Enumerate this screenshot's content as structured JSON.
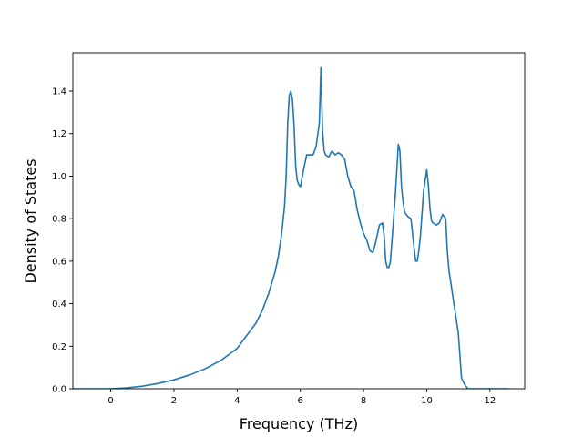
{
  "chart_data": {
    "type": "line",
    "title": "",
    "xlabel": "Frequency (THz)",
    "ylabel": "Density of States",
    "xlim": [
      -1.2,
      13.1
    ],
    "ylim": [
      0,
      1.58
    ],
    "xticks": [
      0,
      2,
      4,
      6,
      8,
      10,
      12
    ],
    "yticks": [
      0.0,
      0.2,
      0.4,
      0.6,
      0.8,
      1.0,
      1.2,
      1.4
    ],
    "xtick_labels": [
      "0",
      "2",
      "4",
      "6",
      "8",
      "10",
      "12"
    ],
    "ytick_labels": [
      "0.0",
      "0.2",
      "0.4",
      "0.6",
      "0.8",
      "1.0",
      "1.2",
      "1.4"
    ],
    "grid": false,
    "legend": "none",
    "line_color": "#1f77b4",
    "series": [
      {
        "x": [
          -1.2,
          -0.5,
          0.0,
          0.5,
          1.0,
          1.5,
          2.0,
          2.5,
          3.0,
          3.5,
          4.0,
          4.1,
          4.2,
          4.4,
          4.6,
          4.8,
          5.0,
          5.2,
          5.3,
          5.4,
          5.5,
          5.55,
          5.6,
          5.65,
          5.7,
          5.75,
          5.8,
          5.85,
          5.9,
          5.95,
          6.0,
          6.1,
          6.2,
          6.3,
          6.4,
          6.5,
          6.6,
          6.65,
          6.7,
          6.75,
          6.8,
          6.9,
          7.0,
          7.1,
          7.2,
          7.3,
          7.4,
          7.5,
          7.6,
          7.7,
          7.8,
          7.9,
          8.0,
          8.1,
          8.2,
          8.3,
          8.4,
          8.5,
          8.6,
          8.65,
          8.7,
          8.75,
          8.8,
          8.85,
          8.9,
          9.0,
          9.1,
          9.15,
          9.2,
          9.25,
          9.3,
          9.4,
          9.5,
          9.6,
          9.65,
          9.7,
          9.75,
          9.8,
          9.9,
          10.0,
          10.05,
          10.1,
          10.15,
          10.2,
          10.3,
          10.4,
          10.5,
          10.6,
          10.65,
          10.7,
          10.75,
          10.8,
          10.9,
          11.0,
          11.1,
          11.2,
          11.3,
          11.4,
          11.5,
          12.0,
          12.6
        ],
        "y": [
          0.0,
          0.0,
          0.0,
          0.004,
          0.012,
          0.025,
          0.042,
          0.065,
          0.095,
          0.135,
          0.19,
          0.21,
          0.23,
          0.27,
          0.31,
          0.37,
          0.45,
          0.55,
          0.62,
          0.72,
          0.86,
          1.0,
          1.25,
          1.38,
          1.4,
          1.36,
          1.24,
          1.05,
          0.98,
          0.96,
          0.95,
          1.03,
          1.1,
          1.1,
          1.1,
          1.14,
          1.25,
          1.51,
          1.22,
          1.12,
          1.1,
          1.09,
          1.12,
          1.1,
          1.11,
          1.1,
          1.08,
          1.0,
          0.95,
          0.93,
          0.84,
          0.78,
          0.73,
          0.7,
          0.65,
          0.64,
          0.7,
          0.77,
          0.78,
          0.72,
          0.6,
          0.57,
          0.57,
          0.6,
          0.7,
          0.9,
          1.15,
          1.12,
          0.95,
          0.88,
          0.83,
          0.81,
          0.8,
          0.66,
          0.6,
          0.6,
          0.65,
          0.72,
          0.93,
          1.03,
          0.96,
          0.85,
          0.79,
          0.78,
          0.77,
          0.78,
          0.82,
          0.8,
          0.65,
          0.56,
          0.51,
          0.46,
          0.36,
          0.26,
          0.05,
          0.02,
          0.0,
          0.0,
          0.0,
          0.0,
          0.0
        ]
      }
    ]
  }
}
